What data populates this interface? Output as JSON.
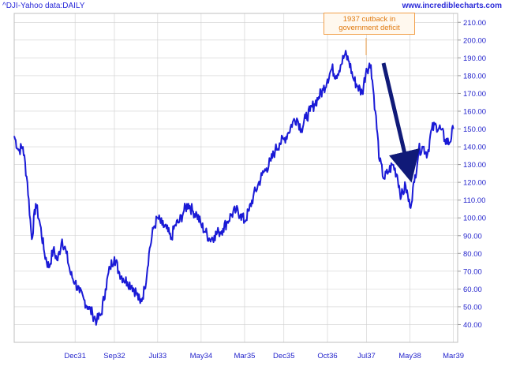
{
  "header": {
    "source_label": "^DJI-Yahoo data:DAILY",
    "watermark": "www.incrediblecharts.com"
  },
  "annotation": {
    "line1": "1937 cutback in",
    "line2": "government deficit"
  },
  "colors": {
    "series": "#1a1ad6",
    "arrow": "#101a78",
    "grid": "#cfcfcf",
    "annotation_border": "#f2a04a",
    "annotation_text": "#e07a10"
  },
  "chart_data": {
    "type": "line",
    "title": "",
    "xlabel": "",
    "ylabel": "",
    "ylim": [
      30,
      215
    ],
    "xlim": [
      "1930-10-01",
      "1939-03-31"
    ],
    "y_ticks": [
      "40.00",
      "50.00",
      "60.00",
      "70.00",
      "80.00",
      "90.00",
      "100.00",
      "110.00",
      "120.00",
      "130.00",
      "140.00",
      "150.00",
      "160.00",
      "170.00",
      "180.00",
      "190.00",
      "200.00",
      "210.00"
    ],
    "x_ticks": [
      {
        "label": "Dec31",
        "date": "1931-12-01"
      },
      {
        "label": "Sep32",
        "date": "1932-09-01"
      },
      {
        "label": "Jul33",
        "date": "1933-07-01"
      },
      {
        "label": "May34",
        "date": "1934-05-01"
      },
      {
        "label": "Mar35",
        "date": "1935-03-01"
      },
      {
        "label": "Dec35",
        "date": "1935-12-01"
      },
      {
        "label": "Oct36",
        "date": "1936-10-01"
      },
      {
        "label": "Jul37",
        "date": "1937-07-01"
      },
      {
        "label": "May38",
        "date": "1938-05-01"
      },
      {
        "label": "Mar39",
        "date": "1939-03-01"
      }
    ],
    "grid": true,
    "series": [
      {
        "name": "",
        "points": [
          [
            "1930-10-01",
            146
          ],
          [
            "1930-11-01",
            138
          ],
          [
            "1930-12-01",
            140
          ],
          [
            "1931-01-01",
            120
          ],
          [
            "1931-02-01",
            88
          ],
          [
            "1931-03-01",
            108
          ],
          [
            "1931-04-01",
            96
          ],
          [
            "1931-05-01",
            80
          ],
          [
            "1931-06-01",
            72
          ],
          [
            "1931-07-01",
            82
          ],
          [
            "1931-08-01",
            76
          ],
          [
            "1931-09-01",
            88
          ],
          [
            "1931-10-01",
            80
          ],
          [
            "1931-11-01",
            68
          ],
          [
            "1931-12-01",
            64
          ],
          [
            "1932-01-01",
            58
          ],
          [
            "1932-02-01",
            54
          ],
          [
            "1932-03-01",
            50
          ],
          [
            "1932-04-01",
            46
          ],
          [
            "1932-05-01",
            42
          ],
          [
            "1932-06-01",
            46
          ],
          [
            "1932-07-01",
            60
          ],
          [
            "1932-08-01",
            72
          ],
          [
            "1932-09-01",
            78
          ],
          [
            "1932-10-01",
            70
          ],
          [
            "1932-11-01",
            66
          ],
          [
            "1932-12-01",
            64
          ],
          [
            "1933-01-01",
            62
          ],
          [
            "1933-02-01",
            58
          ],
          [
            "1933-03-01",
            52
          ],
          [
            "1933-04-01",
            60
          ],
          [
            "1933-05-01",
            80
          ],
          [
            "1933-06-01",
            94
          ],
          [
            "1933-07-01",
            100
          ],
          [
            "1933-08-01",
            96
          ],
          [
            "1933-09-01",
            94
          ],
          [
            "1933-10-01",
            88
          ],
          [
            "1933-11-01",
            96
          ],
          [
            "1933-12-01",
            98
          ],
          [
            "1934-01-01",
            104
          ],
          [
            "1934-02-01",
            108
          ],
          [
            "1934-03-01",
            104
          ],
          [
            "1934-04-01",
            102
          ],
          [
            "1934-05-01",
            96
          ],
          [
            "1934-06-01",
            92
          ],
          [
            "1934-07-01",
            88
          ],
          [
            "1934-08-01",
            90
          ],
          [
            "1934-09-01",
            92
          ],
          [
            "1934-10-01",
            94
          ],
          [
            "1934-11-01",
            98
          ],
          [
            "1934-12-01",
            102
          ],
          [
            "1935-01-01",
            104
          ],
          [
            "1935-02-01",
            102
          ],
          [
            "1935-03-01",
            98
          ],
          [
            "1935-04-01",
            104
          ],
          [
            "1935-05-01",
            112
          ],
          [
            "1935-06-01",
            118
          ],
          [
            "1935-07-01",
            124
          ],
          [
            "1935-08-01",
            128
          ],
          [
            "1935-09-01",
            132
          ],
          [
            "1935-10-01",
            138
          ],
          [
            "1935-11-01",
            142
          ],
          [
            "1935-12-01",
            144
          ],
          [
            "1936-01-01",
            148
          ],
          [
            "1936-02-01",
            154
          ],
          [
            "1936-03-01",
            156
          ],
          [
            "1936-04-01",
            150
          ],
          [
            "1936-05-01",
            156
          ],
          [
            "1936-06-01",
            160
          ],
          [
            "1936-07-01",
            164
          ],
          [
            "1936-08-01",
            168
          ],
          [
            "1936-09-01",
            172
          ],
          [
            "1936-10-01",
            178
          ],
          [
            "1936-11-01",
            184
          ],
          [
            "1936-12-01",
            180
          ],
          [
            "1937-01-01",
            186
          ],
          [
            "1937-02-01",
            192
          ],
          [
            "1937-03-01",
            188
          ],
          [
            "1937-04-01",
            178
          ],
          [
            "1937-05-01",
            174
          ],
          [
            "1937-06-01",
            170
          ],
          [
            "1937-07-01",
            184
          ],
          [
            "1937-08-01",
            186
          ],
          [
            "1937-09-01",
            160
          ],
          [
            "1937-10-01",
            132
          ],
          [
            "1937-11-01",
            122
          ],
          [
            "1937-12-01",
            126
          ],
          [
            "1938-01-01",
            130
          ],
          [
            "1938-02-01",
            124
          ],
          [
            "1938-03-01",
            112
          ],
          [
            "1938-04-01",
            118
          ],
          [
            "1938-05-01",
            106
          ],
          [
            "1938-06-01",
            120
          ],
          [
            "1938-07-01",
            138
          ],
          [
            "1938-08-01",
            140
          ],
          [
            "1938-09-01",
            136
          ],
          [
            "1938-10-01",
            150
          ],
          [
            "1938-11-01",
            152
          ],
          [
            "1938-12-01",
            150
          ],
          [
            "1939-01-01",
            144
          ],
          [
            "1939-02-01",
            142
          ],
          [
            "1939-03-01",
            150
          ]
        ]
      }
    ]
  }
}
